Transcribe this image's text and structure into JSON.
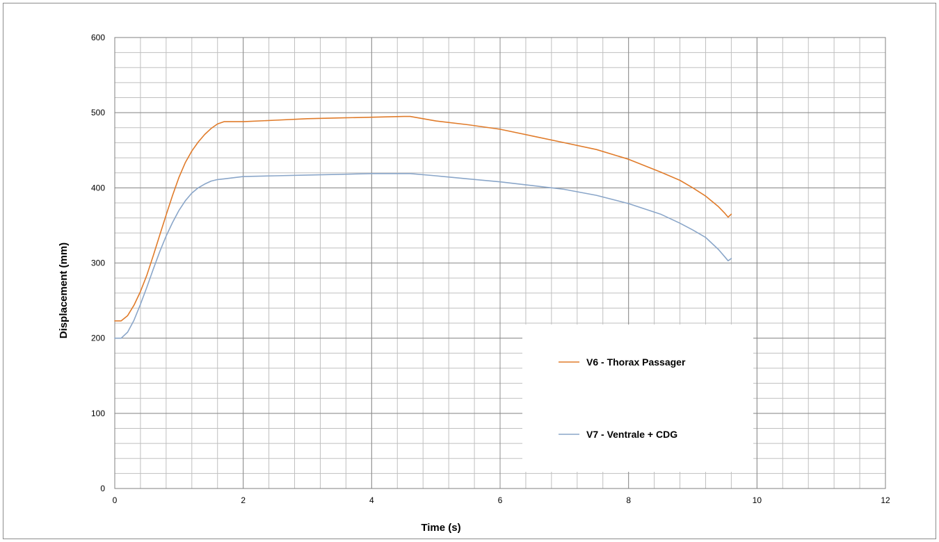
{
  "chart_data": {
    "type": "line",
    "title": "",
    "xlabel": "Time (s)",
    "ylabel": "Displacement (mm)",
    "xlim": [
      0,
      12
    ],
    "ylim": [
      0,
      600
    ],
    "x_ticks": [
      0,
      2,
      4,
      6,
      8,
      10,
      12
    ],
    "y_ticks": [
      0,
      100,
      200,
      300,
      400,
      500,
      600
    ],
    "x_tick_labels": [
      "0",
      "2",
      "4",
      "6",
      "8",
      "10",
      "12"
    ],
    "y_tick_labels": [
      "0",
      "100",
      "200",
      "300",
      "400",
      "500",
      "600"
    ],
    "grid": true,
    "legend_position": "bottom-right, inside plot",
    "series": [
      {
        "name": "V6 - Thorax Passager",
        "color": "#e07b2a",
        "x": [
          0,
          0.1,
          0.2,
          0.3,
          0.4,
          0.5,
          0.6,
          0.7,
          0.8,
          0.9,
          1.0,
          1.1,
          1.2,
          1.3,
          1.4,
          1.5,
          1.6,
          1.7,
          1.8,
          1.9,
          2.0,
          2.5,
          3.0,
          3.5,
          4.0,
          4.5,
          4.6,
          5.0,
          5.5,
          6.0,
          6.5,
          7.0,
          7.5,
          8.0,
          8.5,
          8.8,
          9.0,
          9.2,
          9.4,
          9.5,
          9.55,
          9.6
        ],
        "y": [
          223,
          223,
          230,
          244,
          262,
          284,
          310,
          337,
          364,
          390,
          414,
          434,
          449,
          461,
          471,
          479,
          485,
          488,
          488,
          488,
          488,
          490,
          492,
          493,
          494,
          495,
          495,
          489,
          484,
          478,
          469,
          460,
          451,
          438,
          421,
          410,
          400,
          389,
          375,
          366,
          361,
          365
        ]
      },
      {
        "name": "V7 - Ventrale + CDG",
        "color": "#8aa6c9",
        "x": [
          0,
          0.1,
          0.2,
          0.3,
          0.4,
          0.5,
          0.6,
          0.7,
          0.8,
          0.9,
          1.0,
          1.1,
          1.2,
          1.3,
          1.4,
          1.5,
          1.6,
          1.7,
          1.8,
          1.9,
          2.0,
          2.5,
          3.0,
          3.5,
          4.0,
          4.5,
          4.6,
          5.0,
          5.5,
          6.0,
          6.5,
          7.0,
          7.5,
          8.0,
          8.5,
          8.8,
          9.0,
          9.2,
          9.4,
          9.5,
          9.55,
          9.6
        ],
        "y": [
          200,
          200,
          208,
          224,
          245,
          268,
          292,
          315,
          336,
          354,
          370,
          383,
          393,
          400,
          405,
          409,
          411,
          412,
          413,
          414,
          415,
          416,
          417,
          418,
          419,
          419,
          419,
          416,
          412,
          408,
          403,
          398,
          390,
          379,
          365,
          353,
          344,
          334,
          318,
          308,
          303,
          306
        ]
      }
    ]
  }
}
